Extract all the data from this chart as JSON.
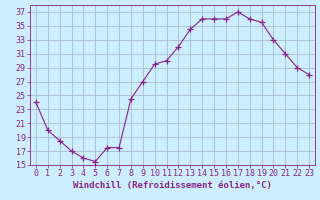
{
  "x": [
    0,
    1,
    2,
    3,
    4,
    5,
    6,
    7,
    8,
    9,
    10,
    11,
    12,
    13,
    14,
    15,
    16,
    17,
    18,
    19,
    20,
    21,
    22,
    23
  ],
  "y": [
    24,
    20,
    18.5,
    17,
    16,
    15.5,
    17.5,
    17.5,
    24.5,
    27,
    29.5,
    30,
    32,
    34.5,
    36,
    36,
    36,
    37,
    36,
    35.5,
    33,
    31,
    29,
    28
  ],
  "line_color": "#882288",
  "marker": "+",
  "marker_size": 4,
  "marker_linewidth": 1.0,
  "bg_color": "#cceeff",
  "grid_color": "#aabbcc",
  "xlabel": "Windchill (Refroidissement éolien,°C)",
  "xlabel_fontsize": 6.5,
  "tick_fontsize": 6.0,
  "xlim": [
    -0.5,
    23.5
  ],
  "ylim": [
    15,
    38
  ],
  "yticks": [
    15,
    17,
    19,
    21,
    23,
    25,
    27,
    29,
    31,
    33,
    35,
    37
  ],
  "xtick_labels": [
    "0",
    "1",
    "2",
    "3",
    "4",
    "5",
    "6",
    "7",
    "8",
    "9",
    "10",
    "11",
    "12",
    "13",
    "14",
    "15",
    "16",
    "17",
    "18",
    "19",
    "20",
    "21",
    "22",
    "23"
  ]
}
